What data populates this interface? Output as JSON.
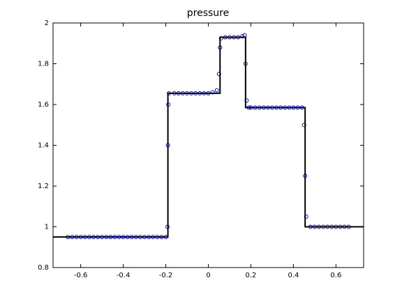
{
  "chart_data": {
    "type": "line",
    "title": "pressure",
    "xlim": [
      -0.73,
      0.73
    ],
    "ylim": [
      0.8,
      2
    ],
    "xticks": [
      -0.6,
      -0.4,
      -0.2,
      0,
      0.2,
      0.4,
      0.6
    ],
    "yticks": [
      0.8,
      1,
      1.2,
      1.4,
      1.6,
      1.8,
      2
    ],
    "series": [
      {
        "style": "markers",
        "color": "#0000ff",
        "x": [
          -0.66,
          -0.64,
          -0.62,
          -0.6,
          -0.58,
          -0.56,
          -0.54,
          -0.52,
          -0.5,
          -0.48,
          -0.46,
          -0.44,
          -0.42,
          -0.4,
          -0.38,
          -0.36,
          -0.34,
          -0.32,
          -0.3,
          -0.28,
          -0.26,
          -0.24,
          -0.22,
          -0.2,
          -0.192,
          -0.19,
          -0.188,
          -0.185,
          -0.16,
          -0.14,
          -0.12,
          -0.1,
          -0.08,
          -0.06,
          -0.04,
          -0.02,
          0,
          0.02,
          0.04,
          0.05,
          0.055,
          0.06,
          0.08,
          0.1,
          0.12,
          0.14,
          0.16,
          0.17,
          0.175,
          0.18,
          0.19,
          0.2,
          0.22,
          0.24,
          0.26,
          0.28,
          0.3,
          0.32,
          0.34,
          0.36,
          0.38,
          0.4,
          0.42,
          0.44,
          0.45,
          0.455,
          0.46,
          0.48,
          0.5,
          0.52,
          0.54,
          0.56,
          0.58,
          0.6,
          0.62,
          0.64,
          0.66
        ],
        "values": [
          0.95,
          0.95,
          0.95,
          0.95,
          0.95,
          0.95,
          0.95,
          0.95,
          0.95,
          0.95,
          0.95,
          0.95,
          0.95,
          0.95,
          0.95,
          0.95,
          0.95,
          0.95,
          0.95,
          0.95,
          0.95,
          0.95,
          0.95,
          0.95,
          1.0,
          1.4,
          1.6,
          1.655,
          1.655,
          1.655,
          1.655,
          1.655,
          1.655,
          1.655,
          1.655,
          1.655,
          1.655,
          1.66,
          1.67,
          1.75,
          1.88,
          1.925,
          1.93,
          1.93,
          1.93,
          1.93,
          1.935,
          1.94,
          1.8,
          1.62,
          1.585,
          1.585,
          1.585,
          1.585,
          1.585,
          1.585,
          1.585,
          1.585,
          1.585,
          1.585,
          1.585,
          1.585,
          1.585,
          1.585,
          1.5,
          1.25,
          1.05,
          1.0,
          1.0,
          1.0,
          1.0,
          1.0,
          1.0,
          1.0,
          1.0,
          1.0,
          1.0
        ]
      },
      {
        "style": "line",
        "color": "#000000",
        "x": [
          -0.73,
          -0.19,
          -0.19,
          0.055,
          0.055,
          0.175,
          0.175,
          0.455,
          0.455,
          0.73
        ],
        "values": [
          0.95,
          0.95,
          1.655,
          1.655,
          1.93,
          1.93,
          1.585,
          1.585,
          1.0,
          1.0
        ]
      }
    ]
  }
}
